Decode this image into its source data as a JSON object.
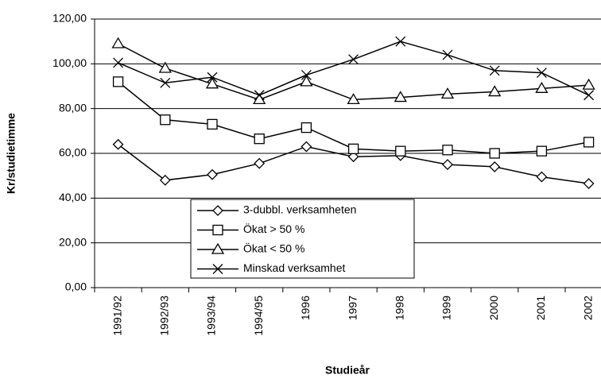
{
  "chart_data": {
    "type": "line",
    "xlabel": "Studieår",
    "ylabel": "Kr/studietimme",
    "categories": [
      "1991/92",
      "1992/93",
      "1993/94",
      "1994/95",
      "1996",
      "1997",
      "1998",
      "1999",
      "2000",
      "2001",
      "2002"
    ],
    "series": [
      {
        "name": "3-dubbl. verksamheten",
        "color": "#000000",
        "marker": "diamond",
        "values": [
          64,
          48,
          50.5,
          55.5,
          63,
          58.5,
          59,
          55,
          54,
          49.5,
          46.5
        ]
      },
      {
        "name": "Ökat > 50 %",
        "color": "#000000",
        "marker": "square",
        "values": [
          92,
          75,
          73,
          66.5,
          71.5,
          62,
          61,
          61.5,
          60,
          61,
          65
        ]
      },
      {
        "name": "Ökat < 50 %",
        "color": "#000000",
        "marker": "triangle",
        "values": [
          109,
          98,
          91,
          84,
          92,
          84,
          85,
          86.5,
          87.5,
          89,
          90.5
        ]
      },
      {
        "name": "Minskad verksamhet",
        "color": "#000000",
        "marker": "x",
        "values": [
          100.5,
          91.5,
          94,
          86,
          95,
          102,
          110,
          104,
          97,
          96,
          86
        ]
      }
    ],
    "ylim": [
      0,
      120
    ],
    "yticks": [
      {
        "value": 0,
        "label": "0,00"
      },
      {
        "value": 20,
        "label": "20,00"
      },
      {
        "value": 40,
        "label": "40,00"
      },
      {
        "value": 60,
        "label": "60,00"
      },
      {
        "value": 80,
        "label": "80,00"
      },
      {
        "value": 100,
        "label": "100,00"
      },
      {
        "value": 120,
        "label": "120,00"
      }
    ],
    "grid": true
  }
}
